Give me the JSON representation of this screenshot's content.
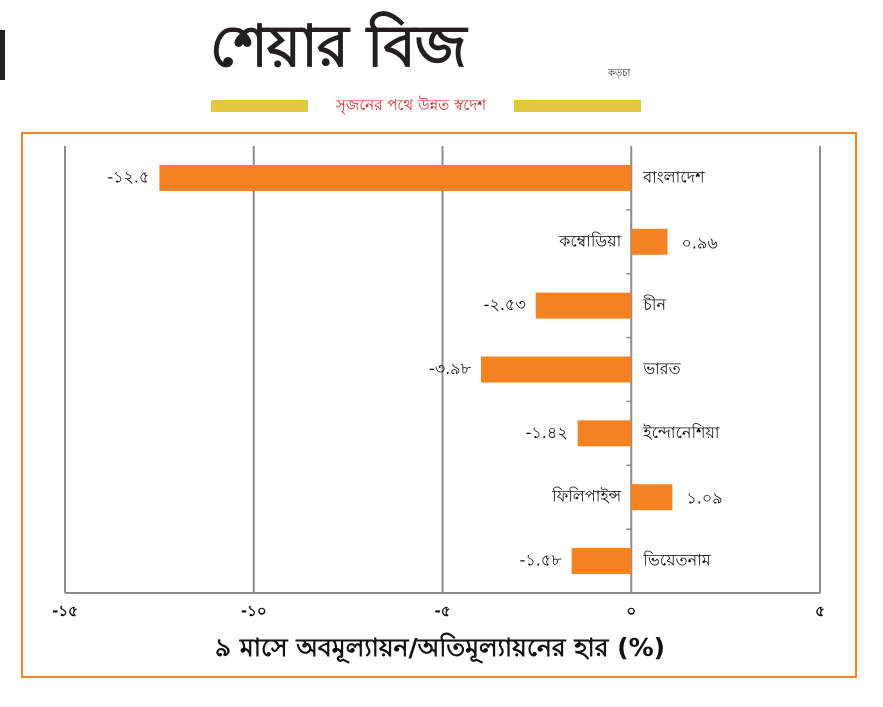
{
  "masthead": {
    "logo": "শেয়ার বিজ",
    "logo_small": "কড়চা",
    "tagline": "সৃজনের পথে উন্নত স্বদেশ"
  },
  "colors": {
    "bar": "#f58220",
    "frame": "#f58220",
    "grid": "#8c8c8c",
    "tagline": "#d2232a",
    "tag_bars": "#e2c83f"
  },
  "chart_data": {
    "type": "bar",
    "orientation": "horizontal",
    "categories": [
      "বাংলাদেশ",
      "কম্বোডিয়া",
      "চীন",
      "ভারত",
      "ইন্দোনেশিয়া",
      "ফিলিপাইন্স",
      "ভিয়েতনাম"
    ],
    "values": [
      -12.5,
      0.96,
      -2.53,
      -3.98,
      -1.42,
      1.09,
      -1.58
    ],
    "value_labels": [
      "-১২.৫",
      "০.৯৬",
      "-২.৫৩",
      "-৩.৯৮",
      "-১.৪২",
      "১.০৯",
      "-১.৫৮"
    ],
    "xlim": [
      -15,
      5
    ],
    "xticks": [
      -15,
      -10,
      -5,
      0,
      5
    ],
    "xtick_labels": [
      "-১৫",
      "-১০",
      "-৫",
      "০",
      "৫"
    ],
    "xlabel": "৯ মাসে অবমূল্যায়ন/অতিমূল্যায়নের হার (%)",
    "grid": "vertical"
  }
}
